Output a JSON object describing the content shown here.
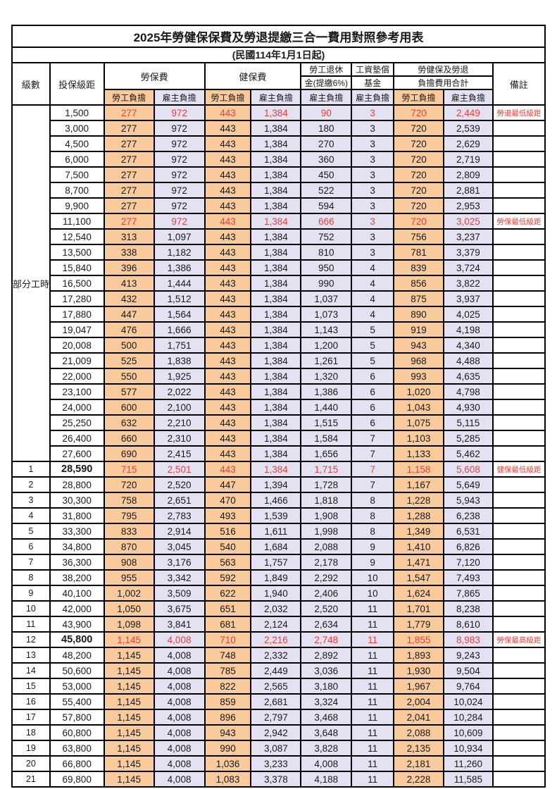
{
  "title": "2025年勞健保保費及勞退提繳三合一費用對照參考用表",
  "subtitle": "(民國114年1月1日起)",
  "columns": {
    "level": "級數",
    "bracket": "投保級距",
    "labor_insurance": "勞保費",
    "health_insurance": "健保費",
    "pension_line1": "勞工退休",
    "pension_line2": "金(提繳6%)",
    "wage_fund_line1": "工資墊償",
    "wage_fund_line2": "基金",
    "total_line1": "勞健保及勞退",
    "total_line2": "負擔費用合計",
    "remark": "備註",
    "worker": "勞工負擔",
    "employer": "雇主負擔"
  },
  "part_time_label": "部分工時",
  "part_time_row_count": 23,
  "colors": {
    "worker_bg": "#F9CA9C",
    "employer_bg": "#E4E2F2",
    "highlight_red": "#E0443E",
    "border": "#000000"
  },
  "rows": [
    {
      "level": "",
      "bracket": "1,500",
      "values": [
        "277",
        "972",
        "443",
        "1,384",
        "90",
        "3",
        "720",
        "2,449"
      ],
      "remark": "勞退最低級距",
      "red": true
    },
    {
      "level": "",
      "bracket": "3,000",
      "values": [
        "277",
        "972",
        "443",
        "1,384",
        "180",
        "3",
        "720",
        "2,539"
      ],
      "remark": ""
    },
    {
      "level": "",
      "bracket": "4,500",
      "values": [
        "277",
        "972",
        "443",
        "1,384",
        "270",
        "3",
        "720",
        "2,629"
      ],
      "remark": ""
    },
    {
      "level": "",
      "bracket": "6,000",
      "values": [
        "277",
        "972",
        "443",
        "1,384",
        "360",
        "3",
        "720",
        "2,719"
      ],
      "remark": ""
    },
    {
      "level": "",
      "bracket": "7,500",
      "values": [
        "277",
        "972",
        "443",
        "1,384",
        "450",
        "3",
        "720",
        "2,809"
      ],
      "remark": ""
    },
    {
      "level": "",
      "bracket": "8,700",
      "values": [
        "277",
        "972",
        "443",
        "1,384",
        "522",
        "3",
        "720",
        "2,881"
      ],
      "remark": ""
    },
    {
      "level": "",
      "bracket": "9,900",
      "values": [
        "277",
        "972",
        "443",
        "1,384",
        "594",
        "3",
        "720",
        "2,953"
      ],
      "remark": ""
    },
    {
      "level": "",
      "bracket": "11,100",
      "values": [
        "277",
        "972",
        "443",
        "1,384",
        "666",
        "3",
        "720",
        "3,025"
      ],
      "remark": "勞保最低級距",
      "red": true
    },
    {
      "level": "",
      "bracket": "12,540",
      "values": [
        "313",
        "1,097",
        "443",
        "1,384",
        "752",
        "3",
        "756",
        "3,237"
      ],
      "remark": ""
    },
    {
      "level": "",
      "bracket": "13,500",
      "values": [
        "338",
        "1,182",
        "443",
        "1,384",
        "810",
        "3",
        "781",
        "3,379"
      ],
      "remark": ""
    },
    {
      "level": "",
      "bracket": "15,840",
      "values": [
        "396",
        "1,386",
        "443",
        "1,384",
        "950",
        "4",
        "839",
        "3,724"
      ],
      "remark": ""
    },
    {
      "level": "",
      "bracket": "16,500",
      "values": [
        "413",
        "1,444",
        "443",
        "1,384",
        "990",
        "4",
        "856",
        "3,822"
      ],
      "remark": ""
    },
    {
      "level": "",
      "bracket": "17,280",
      "values": [
        "432",
        "1,512",
        "443",
        "1,384",
        "1,037",
        "4",
        "875",
        "3,937"
      ],
      "remark": ""
    },
    {
      "level": "",
      "bracket": "17,880",
      "values": [
        "447",
        "1,564",
        "443",
        "1,384",
        "1,073",
        "4",
        "890",
        "4,025"
      ],
      "remark": ""
    },
    {
      "level": "",
      "bracket": "19,047",
      "values": [
        "476",
        "1,666",
        "443",
        "1,384",
        "1,143",
        "5",
        "919",
        "4,198"
      ],
      "remark": ""
    },
    {
      "level": "",
      "bracket": "20,008",
      "values": [
        "500",
        "1,751",
        "443",
        "1,384",
        "1,200",
        "5",
        "943",
        "4,340"
      ],
      "remark": ""
    },
    {
      "level": "",
      "bracket": "21,009",
      "values": [
        "525",
        "1,838",
        "443",
        "1,384",
        "1,261",
        "5",
        "968",
        "4,488"
      ],
      "remark": ""
    },
    {
      "level": "",
      "bracket": "22,000",
      "values": [
        "550",
        "1,925",
        "443",
        "1,384",
        "1,320",
        "6",
        "993",
        "4,635"
      ],
      "remark": ""
    },
    {
      "level": "",
      "bracket": "23,100",
      "values": [
        "577",
        "2,022",
        "443",
        "1,384",
        "1,386",
        "6",
        "1,020",
        "4,798"
      ],
      "remark": ""
    },
    {
      "level": "",
      "bracket": "24,000",
      "values": [
        "600",
        "2,100",
        "443",
        "1,384",
        "1,440",
        "6",
        "1,043",
        "4,930"
      ],
      "remark": ""
    },
    {
      "level": "",
      "bracket": "25,250",
      "values": [
        "632",
        "2,210",
        "443",
        "1,384",
        "1,515",
        "6",
        "1,075",
        "5,115"
      ],
      "remark": ""
    },
    {
      "level": "",
      "bracket": "26,400",
      "values": [
        "660",
        "2,310",
        "443",
        "1,384",
        "1,584",
        "7",
        "1,103",
        "5,285"
      ],
      "remark": ""
    },
    {
      "level": "",
      "bracket": "27,600",
      "values": [
        "690",
        "2,415",
        "443",
        "1,384",
        "1,656",
        "7",
        "1,133",
        "5,462"
      ],
      "remark": ""
    },
    {
      "level": "1",
      "bracket": "28,590",
      "values": [
        "715",
        "2,501",
        "443",
        "1,384",
        "1,715",
        "7",
        "1,158",
        "5,608"
      ],
      "remark": "健保最低級距",
      "red": true,
      "bold": true
    },
    {
      "level": "2",
      "bracket": "28,800",
      "values": [
        "720",
        "2,520",
        "447",
        "1,394",
        "1,728",
        "7",
        "1,167",
        "5,649"
      ],
      "remark": ""
    },
    {
      "level": "3",
      "bracket": "30,300",
      "values": [
        "758",
        "2,651",
        "470",
        "1,466",
        "1,818",
        "8",
        "1,228",
        "5,943"
      ],
      "remark": ""
    },
    {
      "level": "4",
      "bracket": "31,800",
      "values": [
        "795",
        "2,783",
        "493",
        "1,539",
        "1,908",
        "8",
        "1,288",
        "6,238"
      ],
      "remark": ""
    },
    {
      "level": "5",
      "bracket": "33,300",
      "values": [
        "833",
        "2,914",
        "516",
        "1,611",
        "1,998",
        "8",
        "1,349",
        "6,531"
      ],
      "remark": ""
    },
    {
      "level": "6",
      "bracket": "34,800",
      "values": [
        "870",
        "3,045",
        "540",
        "1,684",
        "2,088",
        "9",
        "1,410",
        "6,826"
      ],
      "remark": ""
    },
    {
      "level": "7",
      "bracket": "36,300",
      "values": [
        "908",
        "3,176",
        "563",
        "1,757",
        "2,178",
        "9",
        "1,471",
        "7,120"
      ],
      "remark": ""
    },
    {
      "level": "8",
      "bracket": "38,200",
      "values": [
        "955",
        "3,342",
        "592",
        "1,849",
        "2,292",
        "10",
        "1,547",
        "7,493"
      ],
      "remark": ""
    },
    {
      "level": "9",
      "bracket": "40,100",
      "values": [
        "1,002",
        "3,509",
        "622",
        "1,940",
        "2,406",
        "10",
        "1,624",
        "7,865"
      ],
      "remark": ""
    },
    {
      "level": "10",
      "bracket": "42,000",
      "values": [
        "1,050",
        "3,675",
        "651",
        "2,032",
        "2,520",
        "11",
        "1,701",
        "8,238"
      ],
      "remark": ""
    },
    {
      "level": "11",
      "bracket": "43,900",
      "values": [
        "1,098",
        "3,841",
        "681",
        "2,124",
        "2,634",
        "11",
        "1,779",
        "8,610"
      ],
      "remark": ""
    },
    {
      "level": "12",
      "bracket": "45,800",
      "values": [
        "1,145",
        "4,008",
        "710",
        "2,216",
        "2,748",
        "11",
        "1,855",
        "8,983"
      ],
      "remark": "勞保最高級距",
      "red": true,
      "bold": true
    },
    {
      "level": "13",
      "bracket": "48,200",
      "values": [
        "1,145",
        "4,008",
        "748",
        "2,332",
        "2,892",
        "11",
        "1,893",
        "9,243"
      ],
      "remark": ""
    },
    {
      "level": "14",
      "bracket": "50,600",
      "values": [
        "1,145",
        "4,008",
        "785",
        "2,449",
        "3,036",
        "11",
        "1,930",
        "9,504"
      ],
      "remark": ""
    },
    {
      "level": "15",
      "bracket": "53,000",
      "values": [
        "1,145",
        "4,008",
        "822",
        "2,565",
        "3,180",
        "11",
        "1,967",
        "9,764"
      ],
      "remark": ""
    },
    {
      "level": "16",
      "bracket": "55,400",
      "values": [
        "1,145",
        "4,008",
        "859",
        "2,681",
        "3,324",
        "11",
        "2,004",
        "10,024"
      ],
      "remark": ""
    },
    {
      "level": "17",
      "bracket": "57,800",
      "values": [
        "1,145",
        "4,008",
        "896",
        "2,797",
        "3,468",
        "11",
        "2,041",
        "10,284"
      ],
      "remark": ""
    },
    {
      "level": "18",
      "bracket": "60,800",
      "values": [
        "1,145",
        "4,008",
        "943",
        "2,942",
        "3,648",
        "11",
        "2,088",
        "10,609"
      ],
      "remark": ""
    },
    {
      "level": "19",
      "bracket": "63,800",
      "values": [
        "1,145",
        "4,008",
        "990",
        "3,087",
        "3,828",
        "11",
        "2,135",
        "10,934"
      ],
      "remark": ""
    },
    {
      "level": "20",
      "bracket": "66,800",
      "values": [
        "1,145",
        "4,008",
        "1,036",
        "3,233",
        "4,008",
        "11",
        "2,181",
        "11,260"
      ],
      "remark": ""
    },
    {
      "level": "21",
      "bracket": "69,800",
      "values": [
        "1,145",
        "4,008",
        "1,083",
        "3,378",
        "4,188",
        "11",
        "2,228",
        "11,585"
      ],
      "remark": ""
    }
  ]
}
